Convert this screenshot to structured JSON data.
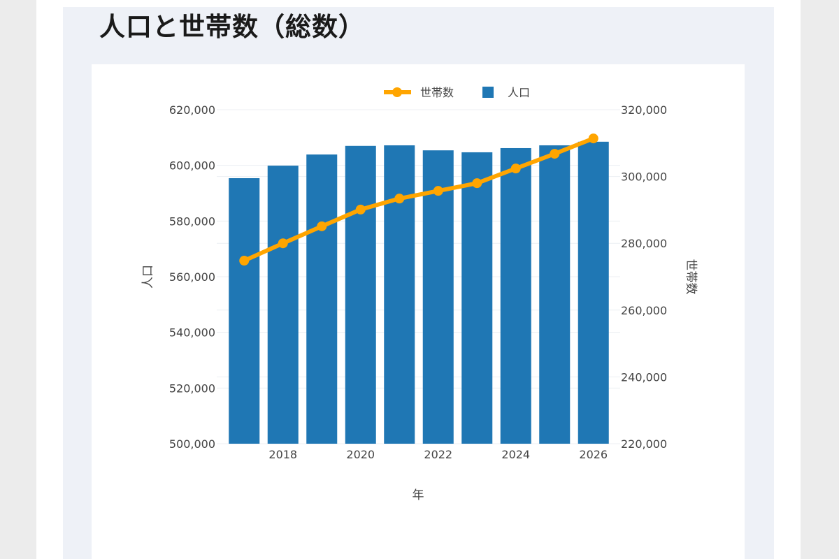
{
  "page": {
    "title": "人口と世帯数（総数）"
  },
  "chart_data": {
    "type": "bar+line",
    "categories": [
      2017,
      2018,
      2019,
      2020,
      2021,
      2022,
      2023,
      2024,
      2025,
      2026
    ],
    "series": [
      {
        "name": "人口",
        "type": "bar",
        "axis": "left",
        "color": "#1f77b4",
        "values": [
          595400,
          599900,
          603900,
          607000,
          607200,
          605400,
          604700,
          606200,
          607200,
          608500
        ]
      },
      {
        "name": "世帯数",
        "type": "line",
        "axis": "right",
        "color": "#ffa500",
        "values": [
          274800,
          280000,
          285100,
          290100,
          293400,
          295700,
          298000,
          302400,
          306800,
          311400
        ]
      }
    ],
    "xlabel": "年",
    "ylabel": "人口",
    "y2label": "世帯数",
    "ylim": [
      500000,
      620000
    ],
    "y2lim": [
      220000,
      320000
    ],
    "xlim": [
      2016.5,
      2026.5
    ],
    "yticks": [
      "500,000",
      "520,000",
      "540,000",
      "560,000",
      "580,000",
      "600,000",
      "620,000"
    ],
    "y2ticks": [
      "220,000",
      "240,000",
      "260,000",
      "280,000",
      "300,000",
      "320,000"
    ],
    "xticks": [
      "2018",
      "2020",
      "2022",
      "2024",
      "2026"
    ],
    "legend": {
      "placement": "top",
      "items": [
        "世帯数",
        "人口"
      ]
    },
    "grid": true
  }
}
